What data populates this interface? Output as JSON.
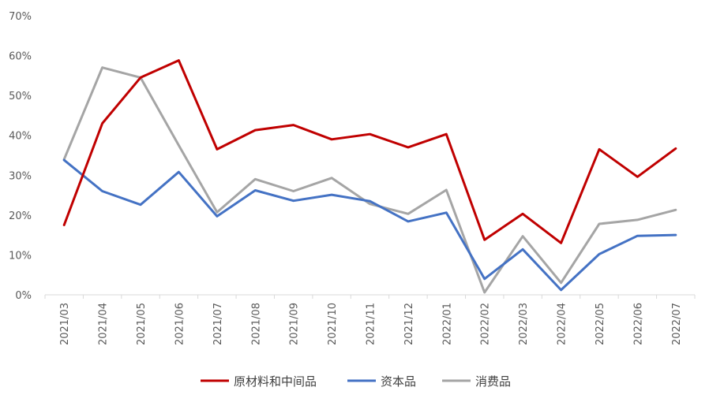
{
  "chart_data": {
    "type": "line",
    "title": "",
    "xlabel": "",
    "ylabel": "",
    "ylim": [
      0,
      70
    ],
    "yticks": [
      0,
      10,
      20,
      30,
      40,
      50,
      60,
      70
    ],
    "ytick_labels": [
      "0%",
      "10%",
      "20%",
      "30%",
      "40%",
      "50%",
      "60%",
      "70%"
    ],
    "grid": false,
    "legend_position": "bottom",
    "categories": [
      "2021/03",
      "2021/04",
      "2021/05",
      "2021/06",
      "2021/07",
      "2021/08",
      "2021/09",
      "2021/10",
      "2021/11",
      "2021/12",
      "2022/01",
      "2022/02",
      "2022/03",
      "2022/04",
      "2022/05",
      "2022/06",
      "2022/07"
    ],
    "series": [
      {
        "name": "原材料和中间品",
        "color": "#c00000",
        "values": [
          17.5,
          43,
          54.5,
          58.8,
          36.5,
          41.3,
          42.6,
          39,
          40.3,
          37,
          40.3,
          13.8,
          20.3,
          13,
          36.5,
          29.6,
          36.7
        ]
      },
      {
        "name": "资本品",
        "color": "#4472c4",
        "values": [
          33.8,
          26,
          22.6,
          30.8,
          19.7,
          26.2,
          23.6,
          25.1,
          23.5,
          18.4,
          20.6,
          4,
          11.4,
          1.2,
          10.2,
          14.8,
          15
        ]
      },
      {
        "name": "消费品",
        "color": "#a5a5a5",
        "values": [
          34,
          57,
          54.5,
          37.5,
          20.7,
          29,
          26,
          29.3,
          22.8,
          20.3,
          26.3,
          0.6,
          14.7,
          3,
          17.8,
          18.8,
          21.3
        ]
      }
    ]
  }
}
